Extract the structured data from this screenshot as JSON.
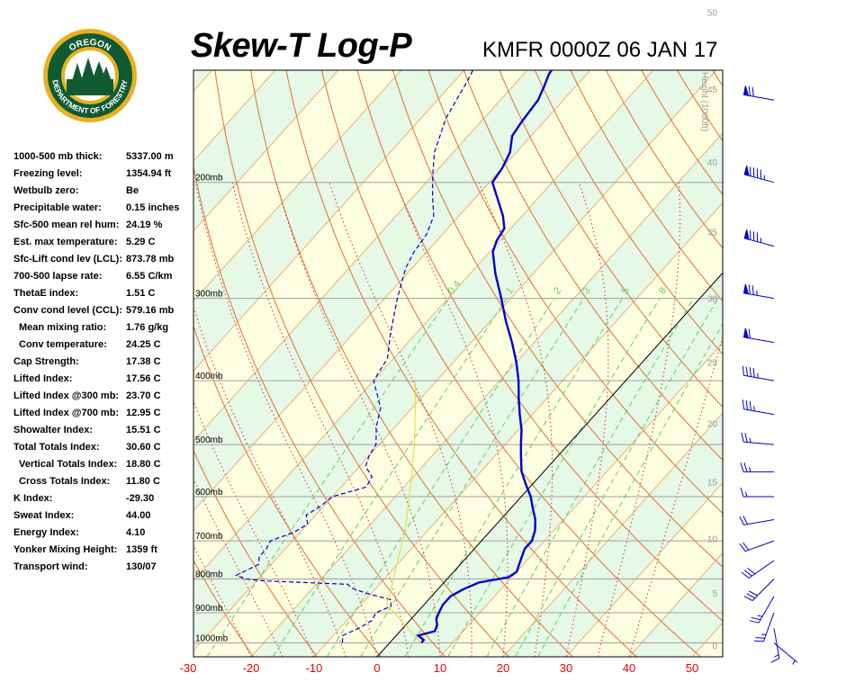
{
  "header": {
    "title": "Skew-T Log-P",
    "station_time": "KMFR 0000Z 06 JAN 17"
  },
  "logo": {
    "top_text": "OREGON",
    "ring_text": "DEPARTMENT OF FORESTRY",
    "colors": {
      "ring": "#0f5a32",
      "gold": "#e8b020",
      "sky": "#ffffff"
    }
  },
  "indices": [
    {
      "label": "1000-500 mb thick:",
      "value": "5337.00 m"
    },
    {
      "label": "Freezing level:",
      "value": "1354.94 ft"
    },
    {
      "label": "Wetbulb zero:",
      "value": "Be"
    },
    {
      "label": "Precipitable water:",
      "value": "0.15 inches"
    },
    {
      "label": "Sfc-500 mean rel hum:",
      "value": "24.19 %"
    },
    {
      "label": "Est. max temperature:",
      "value": "5.29 C"
    },
    {
      "label": "Sfc-Lift cond lev (LCL):",
      "value": "873.78 mb"
    },
    {
      "label": "700-500 lapse rate:",
      "value": "6.55 C/km"
    },
    {
      "label": "ThetaE index:",
      "value": "1.51 C"
    },
    {
      "label": "Conv cond level (CCL):",
      "value": "579.16 mb"
    },
    {
      "label": "Mean mixing ratio:",
      "value": "1.76 g/kg",
      "sub": true
    },
    {
      "label": "Conv temperature:",
      "value": "24.25 C",
      "sub": true
    },
    {
      "label": "Cap Strength:",
      "value": "17.38 C"
    },
    {
      "label": "Lifted Index:",
      "value": "17.56 C"
    },
    {
      "label": "Lifted Index @300 mb:",
      "value": "23.70 C"
    },
    {
      "label": "Lifted Index @700 mb:",
      "value": "12.95 C"
    },
    {
      "label": "Showalter Index:",
      "value": "15.51 C"
    },
    {
      "label": "Total Totals Index:",
      "value": "30.60 C"
    },
    {
      "label": "Vertical Totals Index:",
      "value": "18.80 C",
      "sub": true
    },
    {
      "label": "Cross Totals Index:",
      "value": "11.80 C",
      "sub": true
    },
    {
      "label": "K Index:",
      "value": "-29.30"
    },
    {
      "label": "Sweat Index:",
      "value": "44.00"
    },
    {
      "label": "Energy Index:",
      "value": "4.10"
    },
    {
      "label": "Yonker Mixing Height:",
      "value": "1359 ft"
    },
    {
      "label": "Transport wind:",
      "value": "130/07"
    }
  ],
  "chart_data": {
    "type": "line",
    "title": "Skew-T Log-P",
    "xlabel": "",
    "ylabel": "",
    "x_ticks": [
      -30,
      -20,
      -10,
      0,
      10,
      20,
      30,
      40,
      50
    ],
    "x_tick_labels": [
      "-30",
      "-20",
      "-10",
      "0",
      "10",
      "20",
      "30",
      "40",
      "50"
    ],
    "xlim": [
      -30,
      54
    ],
    "pressure_levels": [
      1000,
      900,
      800,
      700,
      600,
      500,
      400,
      300,
      200
    ],
    "pressure_labels": [
      "1000mb",
      "900mb",
      "800mb",
      "700mb",
      "600mb",
      "500mb",
      "400mb",
      "300mb",
      "200mb"
    ],
    "height_axis_label": "Height (1000ft)",
    "height_ticks": [
      0,
      5,
      10,
      15,
      20,
      25,
      30,
      35,
      40,
      45,
      50
    ],
    "height_tick_labels": [
      "0",
      "5",
      "10",
      "15",
      "20",
      "25",
      "30",
      "35",
      "40",
      "45",
      "50"
    ],
    "mixing_ratio_labels": [
      "0.4",
      "1",
      "2",
      "3",
      "5",
      "8"
    ],
    "series": [
      {
        "role": "temperature",
        "color": "#0000cc",
        "points": [
          [
            1000,
            5.0
          ],
          [
            990,
            5.0
          ],
          [
            975,
            3.5
          ],
          [
            960,
            5.5
          ],
          [
            940,
            5.0
          ],
          [
            920,
            4.0
          ],
          [
            900,
            3.5
          ],
          [
            875,
            3.0
          ],
          [
            850,
            3.0
          ],
          [
            830,
            4.0
          ],
          [
            810,
            5.5
          ],
          [
            795,
            9.5
          ],
          [
            780,
            10.0
          ],
          [
            750,
            9.0
          ],
          [
            720,
            8.0
          ],
          [
            700,
            8.0
          ],
          [
            675,
            7.0
          ],
          [
            650,
            5.5
          ],
          [
            625,
            3.5
          ],
          [
            600,
            1.5
          ],
          [
            575,
            -1.0
          ],
          [
            550,
            -3.5
          ],
          [
            525,
            -5.5
          ],
          [
            500,
            -7.5
          ],
          [
            475,
            -9.5
          ],
          [
            450,
            -12.0
          ],
          [
            425,
            -14.5
          ],
          [
            400,
            -17.0
          ],
          [
            375,
            -20.0
          ],
          [
            350,
            -23.5
          ],
          [
            325,
            -27.5
          ],
          [
            300,
            -31.5
          ],
          [
            275,
            -36.0
          ],
          [
            255,
            -39.5
          ],
          [
            245,
            -40.5
          ],
          [
            235,
            -41.0
          ],
          [
            225,
            -43.0
          ],
          [
            215,
            -45.5
          ],
          [
            200,
            -49.5
          ],
          [
            190,
            -50.0
          ],
          [
            180,
            -51.0
          ],
          [
            170,
            -53.0
          ],
          [
            162,
            -53.5
          ],
          [
            150,
            -54.0
          ],
          [
            143,
            -55.0
          ],
          [
            137,
            -56.0
          ],
          [
            130,
            -56.5
          ],
          [
            125,
            -57.5
          ],
          [
            116,
            -56.0
          ],
          [
            110,
            -55.0
          ]
        ]
      },
      {
        "role": "dewpoint",
        "color": "#0000cc",
        "points": [
          [
            1000,
            -7.5
          ],
          [
            975,
            -8.5
          ],
          [
            950,
            -7.0
          ],
          [
            925,
            -6.0
          ],
          [
            900,
            -6.5
          ],
          [
            880,
            -5.0
          ],
          [
            860,
            -6.0
          ],
          [
            840,
            -11.0
          ],
          [
            825,
            -14.0
          ],
          [
            815,
            -15.0
          ],
          [
            805,
            -29.0
          ],
          [
            800,
            -32.0
          ],
          [
            790,
            -34.0
          ],
          [
            760,
            -32.0
          ],
          [
            740,
            -33.0
          ],
          [
            720,
            -33.0
          ],
          [
            700,
            -33.5
          ],
          [
            680,
            -31.0
          ],
          [
            660,
            -30.0
          ],
          [
            640,
            -31.5
          ],
          [
            620,
            -30.5
          ],
          [
            600,
            -30.0
          ],
          [
            580,
            -26.0
          ],
          [
            560,
            -26.5
          ],
          [
            540,
            -29.0
          ],
          [
            520,
            -30.0
          ],
          [
            500,
            -30.5
          ],
          [
            470,
            -33.0
          ],
          [
            440,
            -35.0
          ],
          [
            400,
            -40.0
          ],
          [
            370,
            -41.0
          ],
          [
            340,
            -44.0
          ],
          [
            300,
            -48.0
          ],
          [
            270,
            -51.0
          ],
          [
            255,
            -52.0
          ],
          [
            240,
            -52.5
          ],
          [
            225,
            -54.0
          ],
          [
            210,
            -57.0
          ],
          [
            195,
            -60.0
          ],
          [
            180,
            -63.0
          ],
          [
            160,
            -66.0
          ],
          [
            140,
            -68.0
          ],
          [
            125,
            -70.0
          ],
          [
            115,
            -72.0
          ],
          [
            110,
            -73.0
          ]
        ]
      },
      {
        "role": "parcel_trace",
        "color": "#dddd33",
        "points": [
          [
            1000,
            5.0
          ],
          [
            950,
            0.8
          ],
          [
            900,
            -3.6
          ],
          [
            874,
            -6.0
          ],
          [
            850,
            -6.7
          ],
          [
            800,
            -8.5
          ],
          [
            750,
            -10.5
          ],
          [
            700,
            -12.5
          ],
          [
            650,
            -14.9
          ],
          [
            600,
            -17.8
          ],
          [
            550,
            -20.9
          ],
          [
            500,
            -24.4
          ],
          [
            450,
            -28.6
          ],
          [
            400,
            -33.4
          ]
        ]
      }
    ],
    "wind_barbs": [
      {
        "p": 1000,
        "dir": 130,
        "kt": 7
      },
      {
        "p": 950,
        "dir": 170,
        "kt": 15
      },
      {
        "p": 900,
        "dir": 200,
        "kt": 25
      },
      {
        "p": 850,
        "dir": 210,
        "kt": 25
      },
      {
        "p": 800,
        "dir": 225,
        "kt": 30
      },
      {
        "p": 750,
        "dir": 235,
        "kt": 30
      },
      {
        "p": 700,
        "dir": 250,
        "kt": 20
      },
      {
        "p": 650,
        "dir": 260,
        "kt": 20
      },
      {
        "p": 600,
        "dir": 270,
        "kt": 15
      },
      {
        "p": 550,
        "dir": 270,
        "kt": 25
      },
      {
        "p": 500,
        "dir": 275,
        "kt": 25
      },
      {
        "p": 450,
        "dir": 280,
        "kt": 35
      },
      {
        "p": 400,
        "dir": 280,
        "kt": 45
      },
      {
        "p": 350,
        "dir": 280,
        "kt": 60
      },
      {
        "p": 300,
        "dir": 280,
        "kt": 75
      },
      {
        "p": 250,
        "dir": 285,
        "kt": 85
      },
      {
        "p": 200,
        "dir": 285,
        "kt": 95
      },
      {
        "p": 150,
        "dir": 280,
        "kt": 70
      },
      {
        "p": 120,
        "dir": 280,
        "kt": 50
      }
    ],
    "grid": true,
    "colors": {
      "isobar": "#a0a0a0",
      "isotherm": "#e8a060",
      "dry_adiabat": "#e07030",
      "moist_adiabat": "#cc3333",
      "mixing_ratio": "#66cc66",
      "band_a": "#e6f8e6",
      "band_b": "#fdfde0",
      "zero_isotherm": "#000000"
    }
  }
}
